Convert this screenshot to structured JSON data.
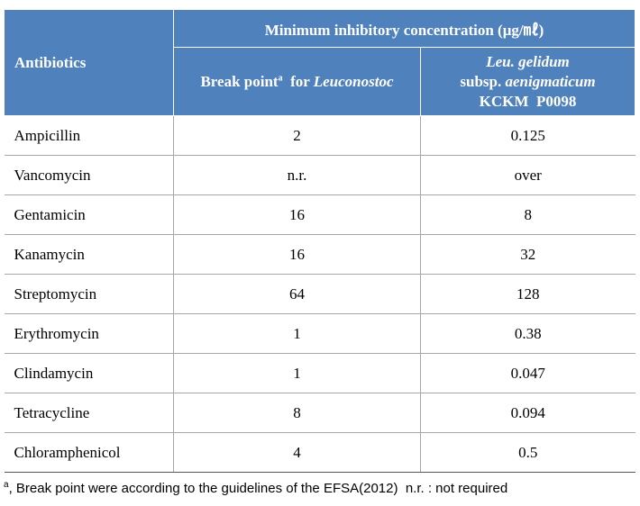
{
  "table": {
    "header": {
      "antibiotics": "Antibiotics",
      "group": "Minimum inhibitory concentration (μg/㎖)",
      "break_point": {
        "text": "Break point",
        "sup": "a",
        "for": "for",
        "genus": "Leuconostoc"
      },
      "strain": {
        "species": "Leu. gelidum",
        "subsp": "subsp.",
        "subspecies": "aenigmaticum",
        "id": "KCKM  P0098"
      }
    },
    "rows": [
      [
        "Ampicillin",
        "2",
        "0.125"
      ],
      [
        "Vancomycin",
        "n.r.",
        "over"
      ],
      [
        "Gentamicin",
        "16",
        "8"
      ],
      [
        "Kanamycin",
        "16",
        "32"
      ],
      [
        "Streptomycin",
        "64",
        "128"
      ],
      [
        "Erythromycin",
        "1",
        "0.38"
      ],
      [
        "Clindamycin",
        "1",
        "0.047"
      ],
      [
        "Tetracycline",
        "8",
        "0.094"
      ],
      [
        "Chloramphenicol",
        "4",
        "0.5"
      ]
    ]
  },
  "footnote": {
    "sup": "a",
    "text": ", Break point were according to the guidelines of the EFSA(2012)  n.r. : not required"
  }
}
